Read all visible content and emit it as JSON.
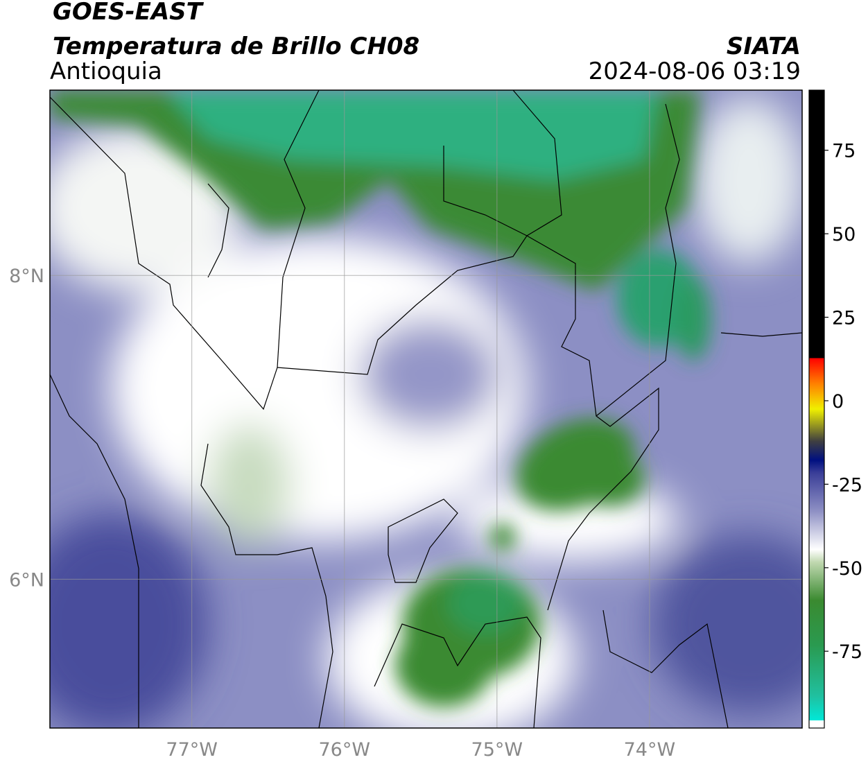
{
  "header": {
    "satellite": "GOES-EAST",
    "product": "Temperatura de Brillo CH08",
    "region": "Antioquia",
    "source": "SIATA",
    "datetime": "2024-08-06 03:19"
  },
  "map": {
    "xlim": [
      -77.93,
      -73.0
    ],
    "ylim": [
      5.02,
      9.22
    ],
    "xticks": [
      {
        "value": -77,
        "label": "77°W"
      },
      {
        "value": -76,
        "label": "76°W"
      },
      {
        "value": -75,
        "label": "75°W"
      },
      {
        "value": -74,
        "label": "74°W"
      }
    ],
    "yticks": [
      {
        "value": 8,
        "label": "8°N"
      },
      {
        "value": 6,
        "label": "6°N"
      }
    ]
  },
  "colorbar": {
    "lim": [
      -98,
      93
    ],
    "ticks": [
      75,
      50,
      25,
      0,
      -25,
      -50,
      -75
    ]
  }
}
